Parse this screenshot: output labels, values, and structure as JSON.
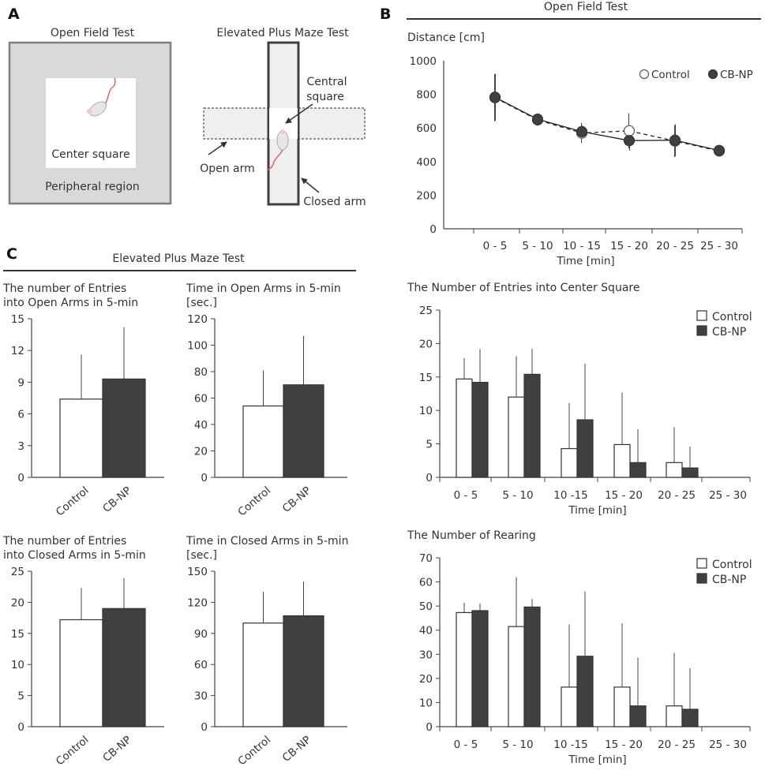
{
  "panels": {
    "a": "A",
    "b": "B",
    "c": "C"
  },
  "diagrams": {
    "open_field": {
      "title": "Open Field Test",
      "center": "Center square",
      "peripheral": "Peripheral region"
    },
    "plus_maze": {
      "title": "Elevated Plus Maze Test",
      "central_1": "Central",
      "central_2": "square",
      "open_arm": "Open arm",
      "closed_arm": "Closed arm"
    }
  },
  "section_c_title": "Elevated Plus Maze Test",
  "colors": {
    "control_fill": "#ffffff",
    "cbnp_fill": "#404040",
    "axis": "#444444"
  },
  "chart_data": [
    {
      "id": "distance",
      "type": "line",
      "section_title": "Open Field Test",
      "ylabel": "Distance [cm]",
      "xlabel": "Time [min]",
      "categories": [
        "0 - 5",
        "5 - 10",
        "10 - 15",
        "15 - 20",
        "20 - 25",
        "25 - 30"
      ],
      "yticks": [
        0,
        200,
        400,
        600,
        800,
        1000
      ],
      "ylim": [
        0,
        1000
      ],
      "legend": [
        "Control",
        "CB-NP"
      ],
      "series": [
        {
          "name": "Control",
          "values": [
            780,
            648,
            570,
            583,
            522,
            463
          ],
          "err": [
            140,
            35,
            60,
            105,
            95,
            20
          ]
        },
        {
          "name": "CB-NP",
          "values": [
            783,
            652,
            578,
            525,
            527,
            466
          ],
          "err": [
            140,
            35,
            35,
            60,
            95,
            15
          ]
        }
      ]
    },
    {
      "id": "open_entries",
      "type": "bar",
      "title_lines": [
        "The number of Entries",
        "into Open Arms in 5-min"
      ],
      "categories": [
        "Control",
        "CB-NP"
      ],
      "values": [
        7.4,
        9.3
      ],
      "err": [
        4.2,
        4.9
      ],
      "yticks": [
        0,
        3,
        6,
        9,
        12,
        15
      ],
      "ylim": [
        0,
        15
      ]
    },
    {
      "id": "open_time",
      "type": "bar",
      "title_lines": [
        "Time in Open Arms in 5-min",
        "[sec.]"
      ],
      "categories": [
        "Control",
        "CB-NP"
      ],
      "values": [
        54,
        70
      ],
      "err": [
        27,
        37
      ],
      "yticks": [
        0,
        20,
        40,
        60,
        80,
        100,
        120
      ],
      "ylim": [
        0,
        120
      ]
    },
    {
      "id": "closed_entries",
      "type": "bar",
      "title_lines": [
        "The number of Entries",
        "into Closed Arms in 5-min"
      ],
      "categories": [
        "Control",
        "CB-NP"
      ],
      "values": [
        17.2,
        19.0
      ],
      "err": [
        5.1,
        4.9
      ],
      "yticks": [
        0,
        5,
        10,
        15,
        20,
        25
      ],
      "ylim": [
        0,
        25
      ]
    },
    {
      "id": "closed_time",
      "type": "bar",
      "title_lines": [
        "Time in Closed Arms in 5-min",
        "[sec.]"
      ],
      "categories": [
        "Control",
        "CB-NP"
      ],
      "values": [
        100,
        107
      ],
      "err": [
        30,
        33
      ],
      "yticks": [
        0,
        30,
        60,
        90,
        120,
        150
      ],
      "ylim": [
        0,
        150
      ]
    },
    {
      "id": "center_entries",
      "type": "bar",
      "title": "The Number of Entries into Center Square",
      "xlabel": "Time [min]",
      "categories": [
        "0 - 5",
        "5 - 10",
        "10 -15",
        "15 - 20",
        "20 - 25",
        "25 - 30"
      ],
      "legend": [
        "Control",
        "CB-NP"
      ],
      "yticks": [
        0,
        5,
        10,
        15,
        20,
        25
      ],
      "ylim": [
        0,
        25
      ],
      "series": [
        {
          "name": "Control",
          "values": [
            14.7,
            12.0,
            4.3,
            4.9,
            2.2,
            0
          ],
          "err": [
            3.1,
            6.1,
            6.8,
            7.8,
            5.3,
            0
          ]
        },
        {
          "name": "CB-NP",
          "values": [
            14.2,
            15.4,
            8.6,
            2.2,
            1.4,
            0
          ],
          "err": [
            5.0,
            3.8,
            8.4,
            5.0,
            3.2,
            0
          ]
        }
      ]
    },
    {
      "id": "rearing",
      "type": "bar",
      "title": "The Number of Rearing",
      "xlabel": "Time [min]",
      "categories": [
        "0 - 5",
        "5 - 10",
        "10 -15",
        "15 - 20",
        "20 - 25",
        "25 - 30"
      ],
      "legend": [
        "Control",
        "CB-NP"
      ],
      "yticks": [
        0,
        10,
        20,
        30,
        40,
        50,
        60,
        70
      ],
      "ylim": [
        0,
        70
      ],
      "series": [
        {
          "name": "Control",
          "values": [
            47.3,
            41.5,
            16.4,
            16.4,
            8.6,
            0
          ],
          "err": [
            4.0,
            20.5,
            26.0,
            26.4,
            22.0,
            0
          ]
        },
        {
          "name": "CB-NP",
          "values": [
            48.1,
            49.6,
            29.2,
            8.6,
            7.2,
            0
          ],
          "err": [
            3.0,
            3.3,
            26.8,
            20.0,
            17.0,
            0
          ]
        }
      ]
    }
  ]
}
